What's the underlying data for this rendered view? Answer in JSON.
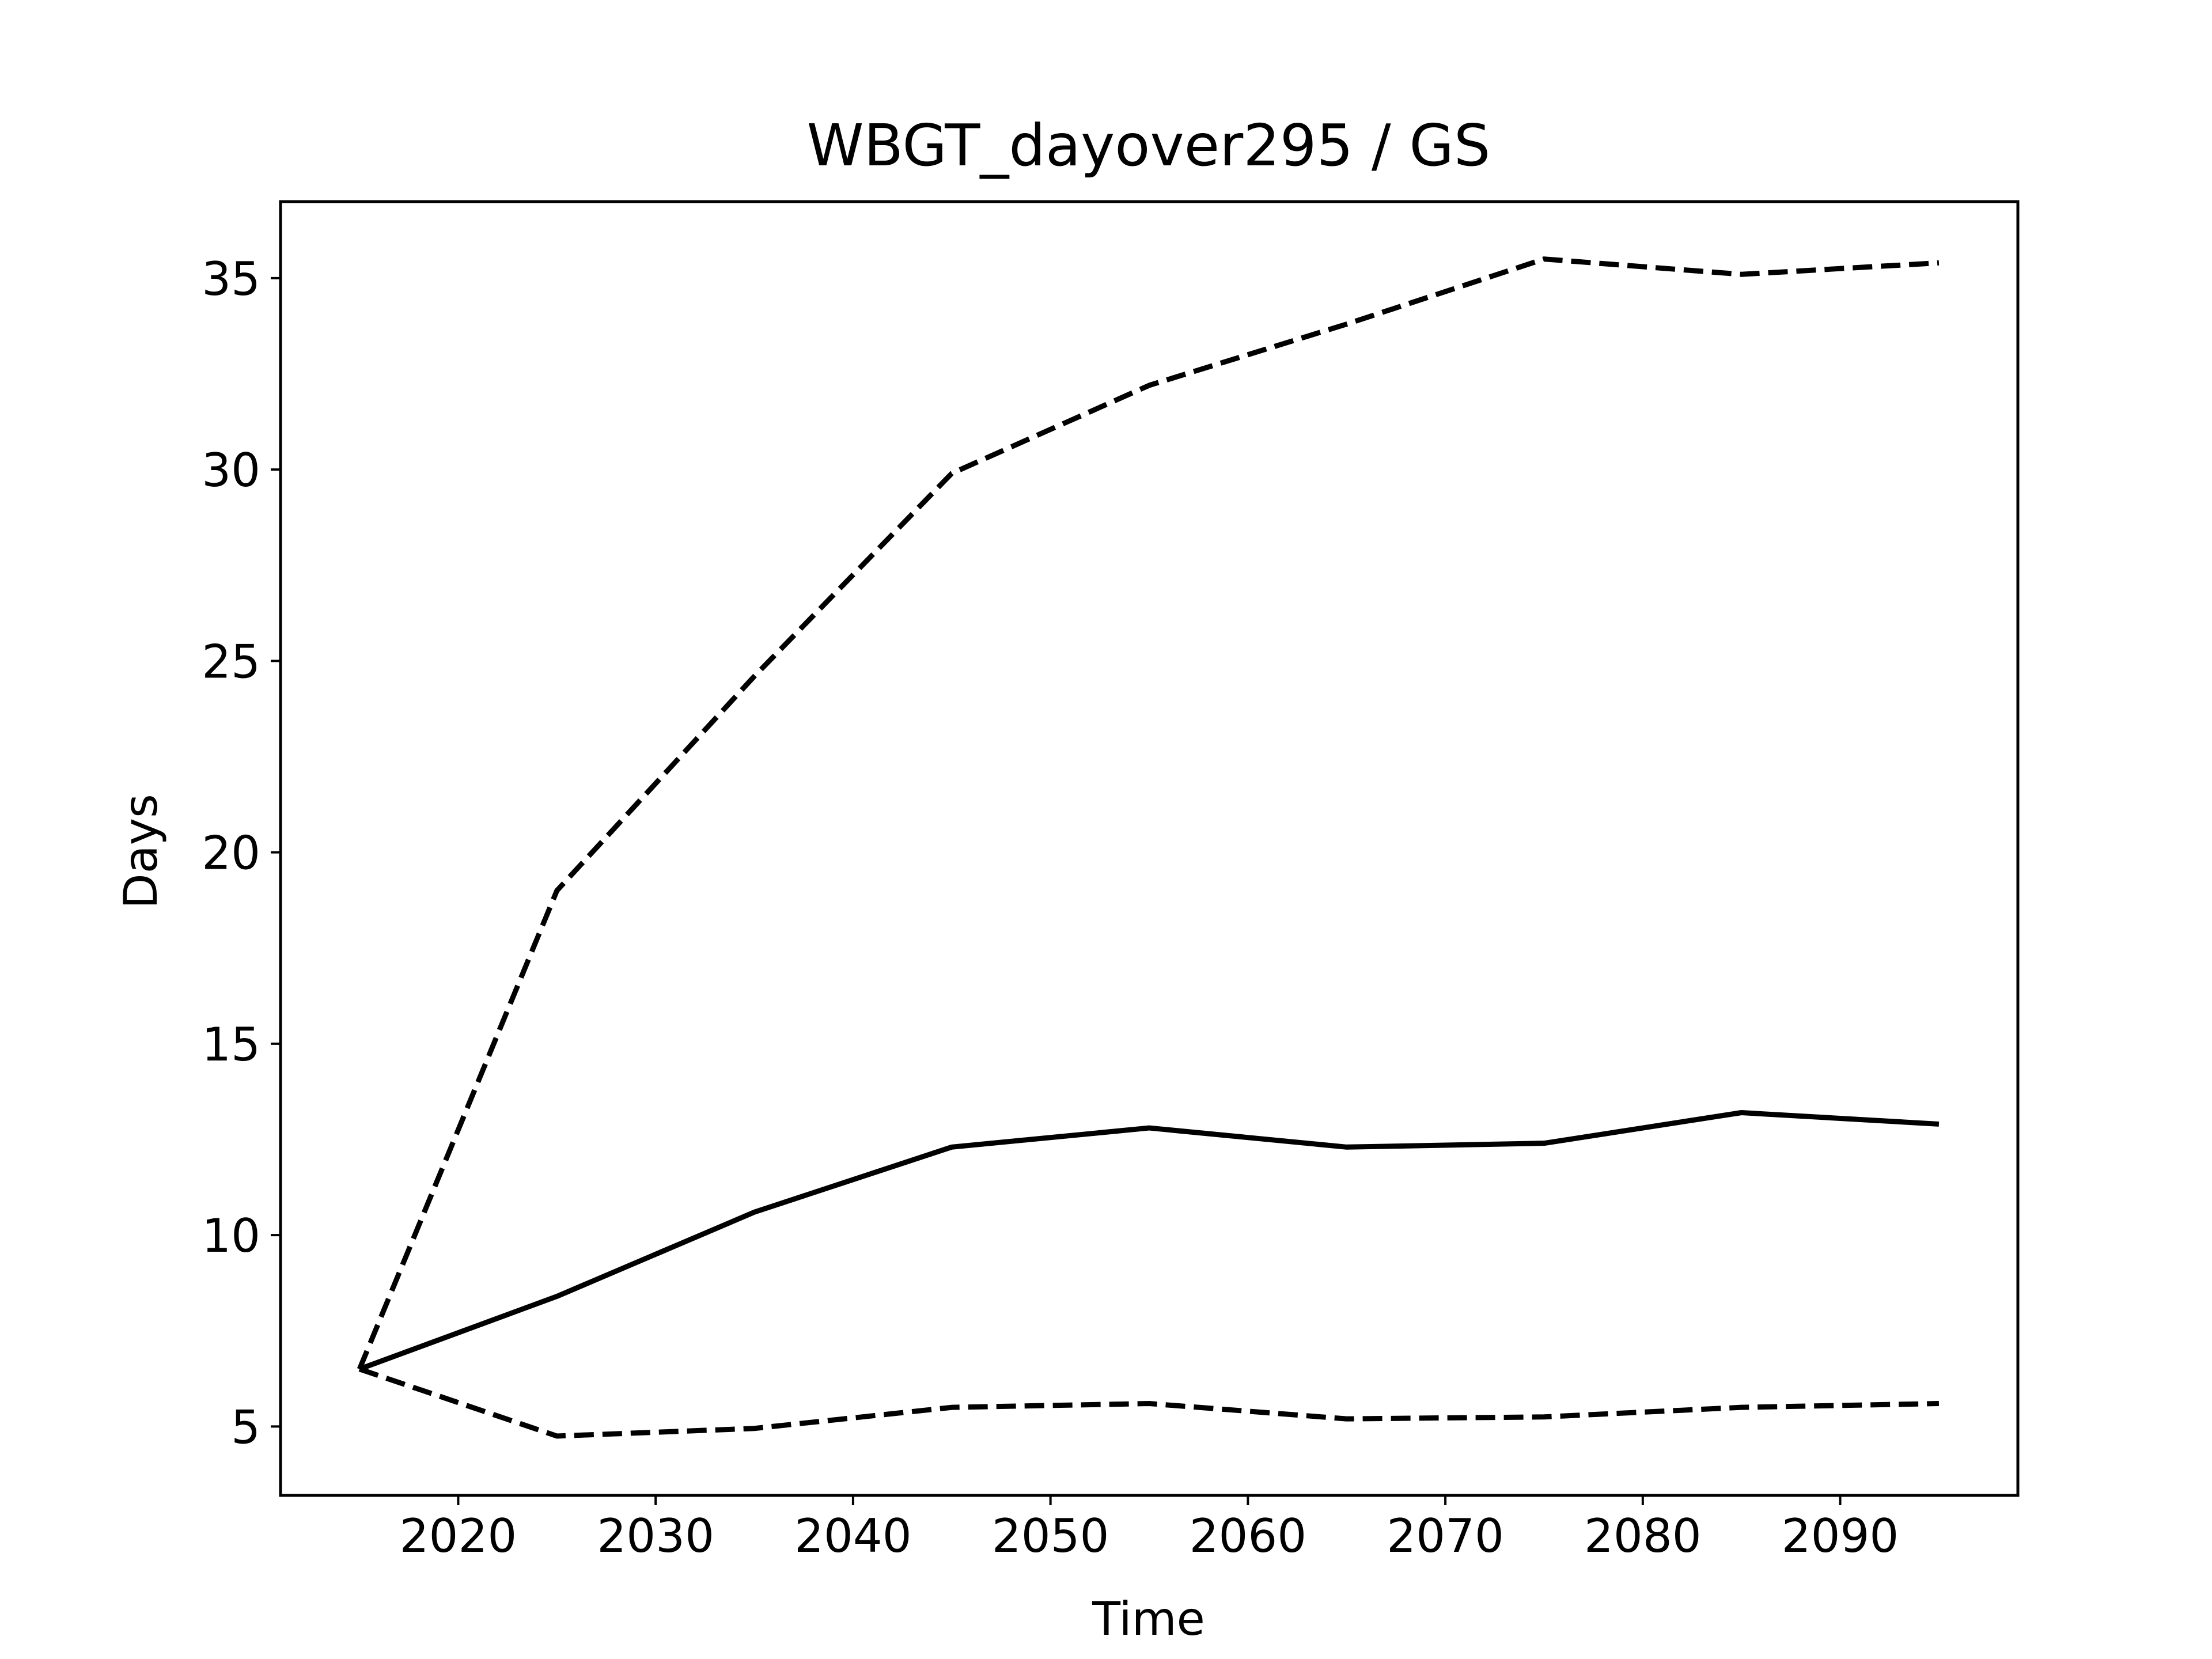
{
  "chart_data": {
    "type": "line",
    "title": "WBGT_dayover295 / GS",
    "xlabel": "Time",
    "ylabel": "Days",
    "xlim": [
      2011,
      2099
    ],
    "ylim": [
      3.2,
      37
    ],
    "xticks": [
      2020,
      2030,
      2040,
      2050,
      2060,
      2070,
      2080,
      2090
    ],
    "yticks": [
      5,
      10,
      15,
      20,
      25,
      30,
      35
    ],
    "grid": false,
    "legend": false,
    "color": "#000000",
    "x": [
      2015,
      2025,
      2035,
      2045,
      2055,
      2065,
      2075,
      2085,
      2095
    ],
    "series": [
      {
        "style": "dashed",
        "values": [
          6.5,
          19.0,
          24.6,
          29.9,
          32.2,
          33.8,
          35.5,
          35.1,
          35.4
        ]
      },
      {
        "style": "solid",
        "values": [
          6.5,
          8.4,
          10.6,
          12.3,
          12.8,
          12.3,
          12.4,
          13.2,
          12.9
        ]
      },
      {
        "style": "dashed",
        "values": [
          6.5,
          4.75,
          4.95,
          5.5,
          5.6,
          5.2,
          5.25,
          5.5,
          5.6
        ]
      }
    ]
  }
}
